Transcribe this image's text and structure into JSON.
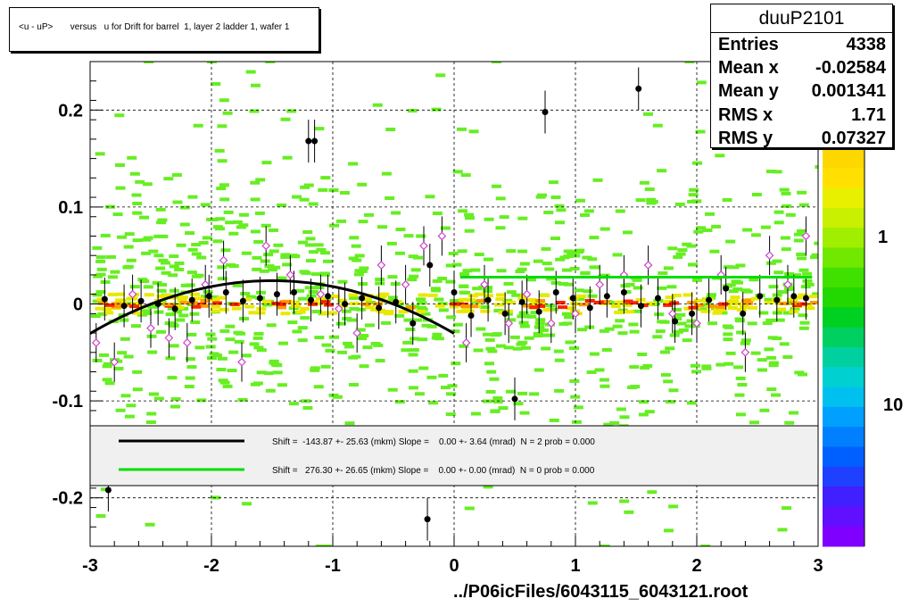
{
  "title": "<u - uP>       versus   u for Drift for barrel  1, layer 2 ladder 1, wafer 1",
  "stats": {
    "name": "duuP2101",
    "rows": [
      {
        "label": "Entries",
        "value": "4338"
      },
      {
        "label": "Mean x",
        "value": "-0.02584"
      },
      {
        "label": "Mean y",
        "value": "0.001341"
      },
      {
        "label": "RMS x",
        "value": "1.71"
      },
      {
        "label": "RMS y",
        "value": "0.07327"
      }
    ]
  },
  "file_label": "../P06icFiles/6043115_6043121.root",
  "fit_legend": [
    {
      "text": "Shift =  -143.87 +- 25.63 (mkm) Slope =    0.00 +- 3.64 (mrad)  N = 2 prob = 0.000",
      "color": "#000000"
    },
    {
      "text": "Shift =   276.30 +- 26.65 (mkm) Slope =    0.00 +- 0.00 (mrad)  N = 0 prob = 0.000",
      "color": "#00dd00"
    }
  ],
  "colors": {
    "cell_green": "#66ee22",
    "cell_yellow": "#e8e800",
    "cell_orange": "#ff9900",
    "cell_red": "#ff2200",
    "profile_open": "#cc44cc",
    "fit_line": "#000000",
    "flat_line": "#00dd00"
  },
  "palette_labels": [
    "1",
    "10"
  ],
  "chart_data": {
    "type": "scatter",
    "xlim": [
      -3,
      3
    ],
    "ylim": [
      -0.25,
      0.25
    ],
    "x_ticks": [
      "-3",
      "-2",
      "-1",
      "0",
      "1",
      "2",
      "3"
    ],
    "y_ticks": [
      "-0.2",
      "-0.1",
      "0",
      "0.1",
      "0.2"
    ],
    "grid": true,
    "series": [
      {
        "marker": "filled-circle",
        "x": [
          -2.88,
          -2.72,
          -2.58,
          -2.44,
          -2.3,
          -2.16,
          -2.02,
          -1.88,
          -1.74,
          -1.6,
          -1.46,
          -1.32,
          -1.18,
          -1.04,
          -0.9,
          -0.76,
          -0.62,
          -0.48,
          -0.34,
          -0.2,
          0.0,
          0.14,
          0.28,
          0.42,
          0.56,
          0.7,
          0.84,
          0.98,
          1.12,
          1.26,
          1.4,
          1.54,
          1.68,
          1.82,
          1.96,
          2.1,
          2.24,
          2.38,
          2.52,
          2.66,
          2.8,
          2.9,
          -1.2,
          -1.15,
          0.75,
          1.52,
          0.5,
          -0.22,
          -2.85
        ],
        "y": [
          0.005,
          -0.002,
          0.003,
          0.0,
          -0.005,
          0.004,
          0.008,
          0.012,
          0.003,
          0.006,
          0.01,
          0.012,
          0.004,
          0.008,
          0.0,
          0.006,
          -0.004,
          0.002,
          -0.02,
          0.04,
          0.012,
          -0.012,
          0.004,
          -0.01,
          0.002,
          -0.008,
          0.012,
          0.006,
          -0.004,
          0.008,
          0.012,
          -0.002,
          0.006,
          -0.018,
          -0.01,
          0.004,
          0.016,
          -0.01,
          0.008,
          0.004,
          0.008,
          0.006,
          0.168,
          0.168,
          0.198,
          0.222,
          -0.098,
          -0.222,
          -0.192
        ]
      },
      {
        "marker": "open-diamond",
        "x": [
          -2.95,
          -2.8,
          -2.65,
          -2.5,
          -2.35,
          -2.2,
          -2.05,
          -1.9,
          -1.75,
          -1.55,
          -1.35,
          -1.1,
          -0.95,
          -0.8,
          -0.6,
          -0.4,
          -0.25,
          -0.1,
          0.1,
          0.25,
          0.45,
          0.6,
          0.8,
          1.0,
          1.2,
          1.4,
          1.6,
          1.8,
          2.0,
          2.2,
          2.4,
          2.6,
          2.75,
          2.9
        ],
        "y": [
          -0.04,
          -0.06,
          0.01,
          -0.025,
          -0.035,
          -0.04,
          0.02,
          0.045,
          -0.06,
          0.06,
          0.03,
          0.01,
          -0.005,
          -0.03,
          0.04,
          0.02,
          0.06,
          0.07,
          -0.04,
          0.02,
          -0.02,
          0.01,
          -0.02,
          -0.01,
          0.02,
          0.03,
          0.04,
          -0.01,
          -0.02,
          0.03,
          -0.05,
          0.05,
          0.02,
          0.07
        ]
      },
      {
        "marker": "fit-curve",
        "x_range": [
          -3,
          0
        ],
        "model": "y = 0.024 - 0.0242*(x+1.5)^2"
      },
      {
        "marker": "flat-line",
        "x_range": [
          0.05,
          2.95
        ],
        "y": 0.0276
      }
    ]
  }
}
